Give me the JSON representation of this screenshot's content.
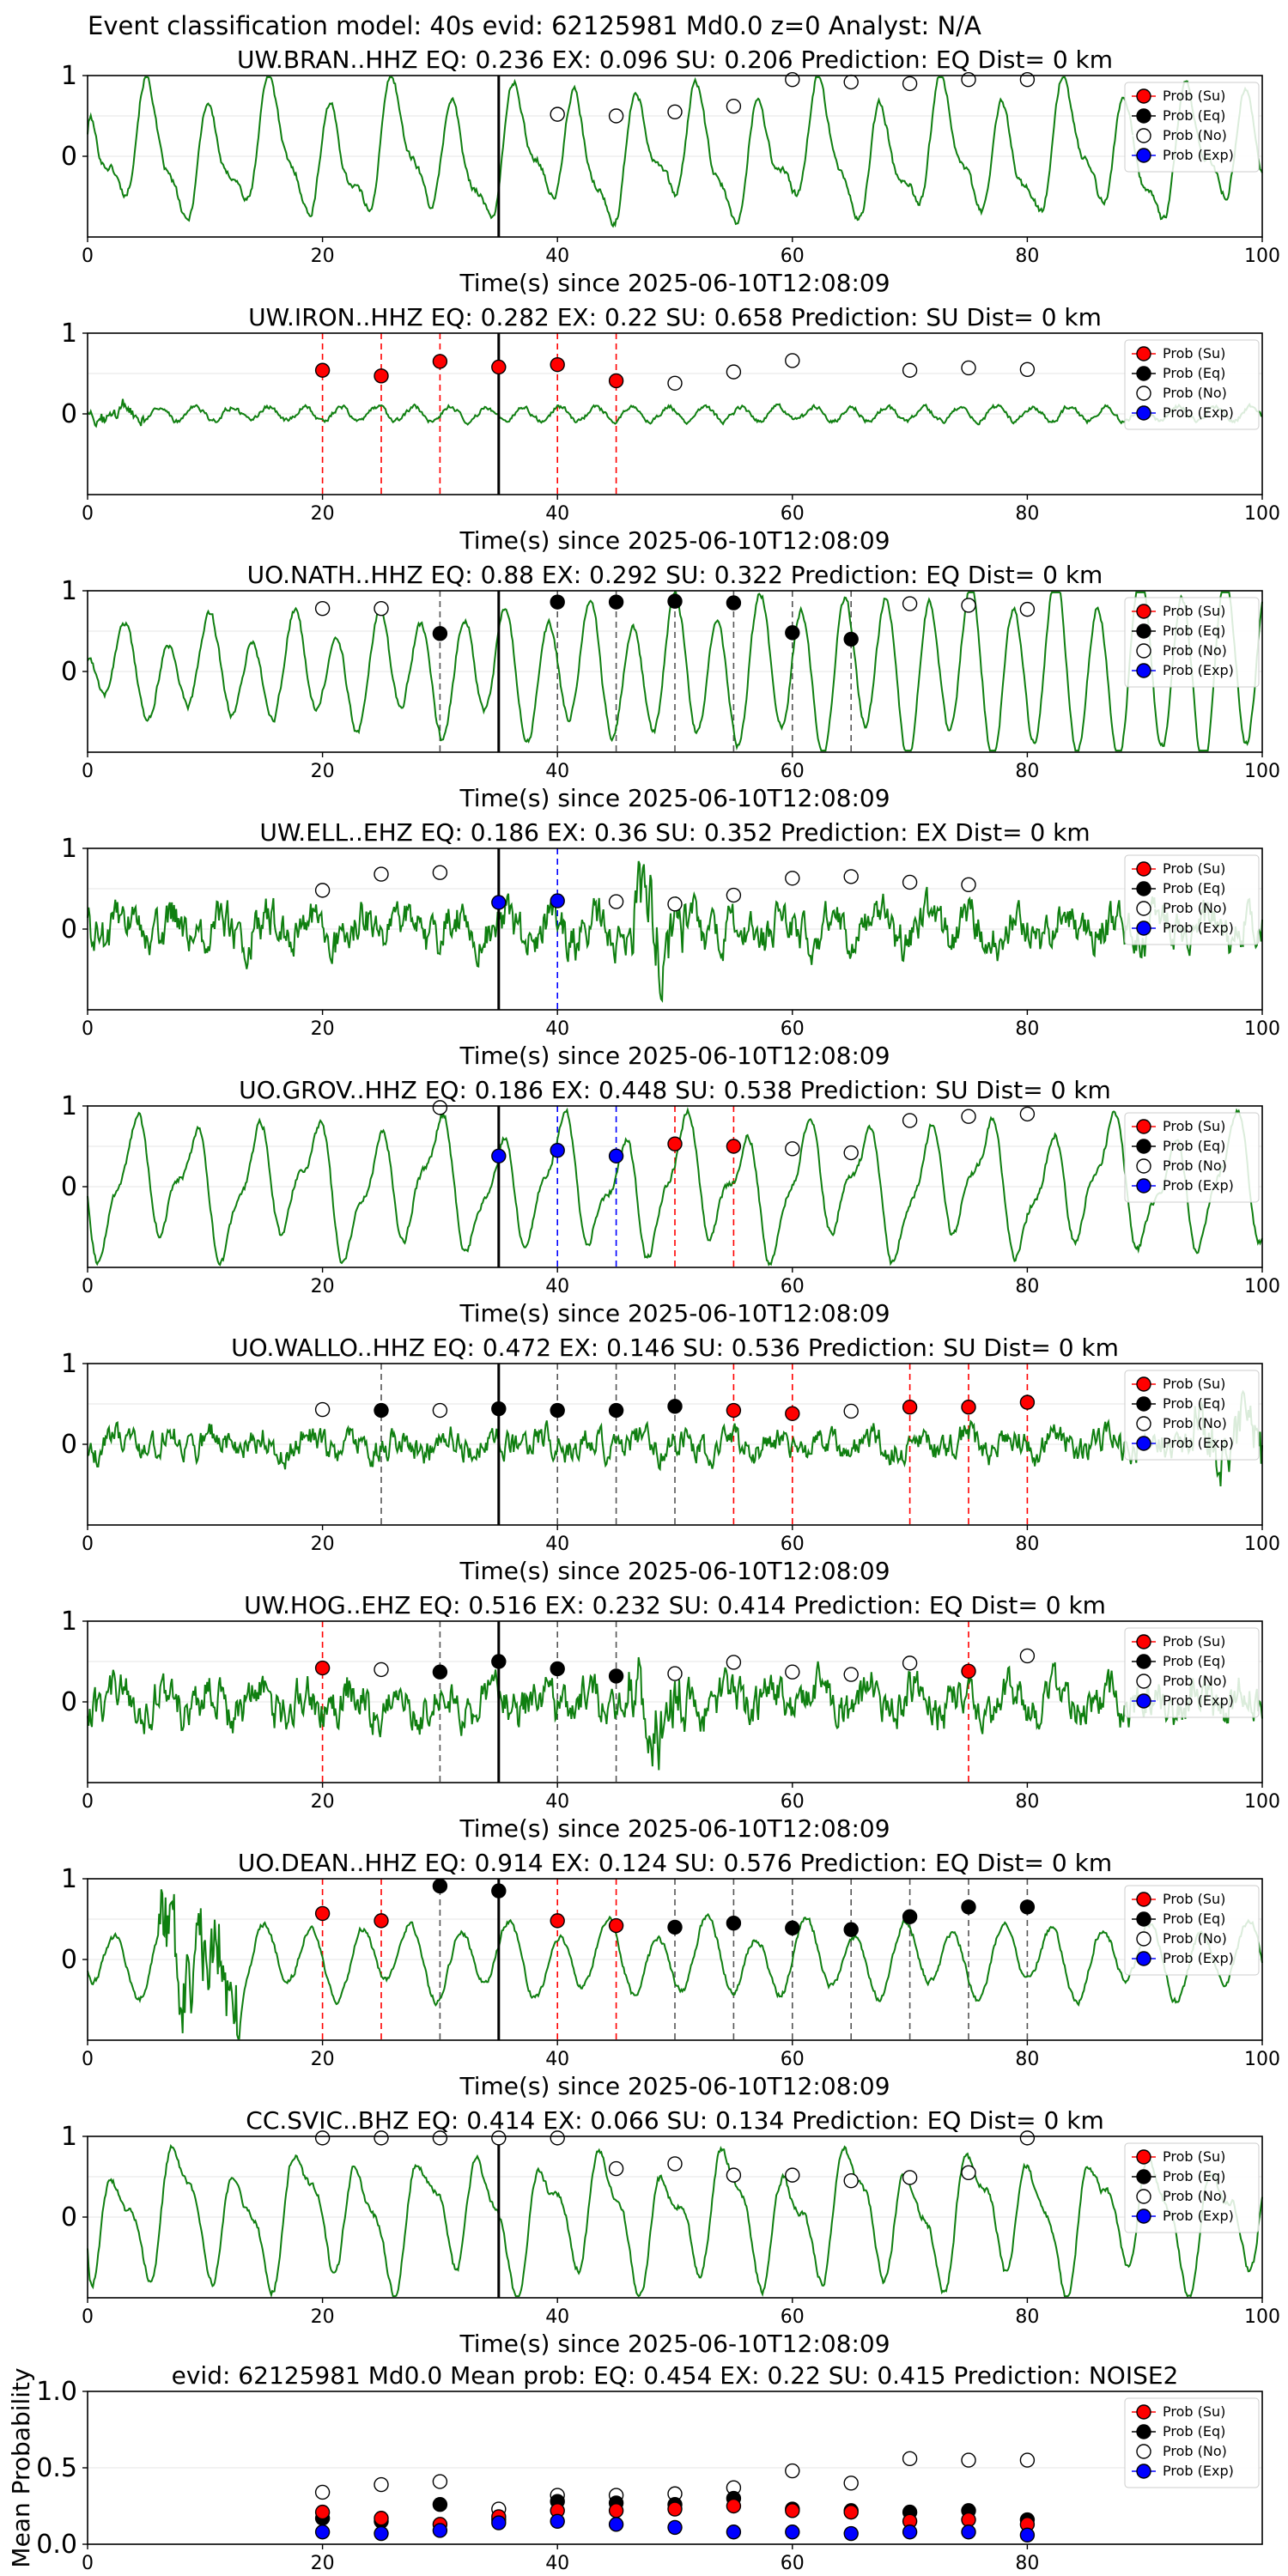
{
  "suptitle": "Event classification model: 40s evid: 62125981 Md0.0 z=0 Analyst: N/A",
  "colors": {
    "trace": "#0f7f10",
    "su": "#ff0000",
    "eq": "#000000",
    "no": "#ffffff",
    "exp": "#0000ff",
    "pick_line": "#000000"
  },
  "legend": [
    "Prob (Su)",
    "Prob (Eq)",
    "Prob (No)",
    "Prob (Exp)"
  ],
  "xlabel": "Time(s) since 2025-06-10T12:08:09",
  "chart_data": [
    {
      "type": "line",
      "title": "UW.BRAN..HHZ   EQ: 0.236  EX: 0.096  SU: 0.206   Prediction: EQ    Dist= 0 km",
      "xlim": [
        0,
        100
      ],
      "ylim": [
        -1,
        1
      ],
      "xticks": [
        0,
        20,
        40,
        60,
        80,
        100
      ],
      "yticks": [
        0,
        1
      ],
      "pick_time": 35,
      "waveform": "low-frequency",
      "windows": [
        {
          "t": 40,
          "p": 0.52,
          "class": "no"
        },
        {
          "t": 45,
          "p": 0.5,
          "class": "no"
        },
        {
          "t": 50,
          "p": 0.55,
          "class": "no"
        },
        {
          "t": 55,
          "p": 0.62,
          "class": "no"
        },
        {
          "t": 60,
          "p": 0.95,
          "class": "no"
        },
        {
          "t": 65,
          "p": 0.92,
          "class": "no"
        },
        {
          "t": 70,
          "p": 0.9,
          "class": "no"
        },
        {
          "t": 75,
          "p": 0.95,
          "class": "no"
        },
        {
          "t": 80,
          "p": 0.95,
          "class": "no"
        }
      ]
    },
    {
      "type": "line",
      "title": "UW.IRON..HHZ   EQ: 0.282  EX: 0.22  SU: 0.658   Prediction: SU    Dist= 0 km",
      "xlim": [
        0,
        100
      ],
      "ylim": [
        -1,
        1
      ],
      "xticks": [
        0,
        20,
        40,
        60,
        80,
        100
      ],
      "yticks": [
        0,
        1
      ],
      "pick_time": 35,
      "waveform": "quiet",
      "windows": [
        {
          "t": 20,
          "p": 0.54,
          "class": "su"
        },
        {
          "t": 25,
          "p": 0.47,
          "class": "su"
        },
        {
          "t": 30,
          "p": 0.65,
          "class": "su"
        },
        {
          "t": 35,
          "p": 0.58,
          "class": "su"
        },
        {
          "t": 40,
          "p": 0.61,
          "class": "su"
        },
        {
          "t": 45,
          "p": 0.41,
          "class": "su"
        },
        {
          "t": 50,
          "p": 0.38,
          "class": "no"
        },
        {
          "t": 55,
          "p": 0.52,
          "class": "no"
        },
        {
          "t": 60,
          "p": 0.66,
          "class": "no"
        },
        {
          "t": 70,
          "p": 0.54,
          "class": "no"
        },
        {
          "t": 75,
          "p": 0.57,
          "class": "no"
        },
        {
          "t": 80,
          "p": 0.55,
          "class": "no"
        }
      ]
    },
    {
      "type": "line",
      "title": "UO.NATH..HHZ   EQ: 0.88  EX: 0.292  SU: 0.322   Prediction: EQ    Dist= 0 km",
      "xlim": [
        0,
        100
      ],
      "ylim": [
        -1,
        1
      ],
      "xticks": [
        0,
        20,
        40,
        60,
        80,
        100
      ],
      "yticks": [
        0,
        1
      ],
      "pick_time": 35,
      "waveform": "low-frequency-growing",
      "windows": [
        {
          "t": 20,
          "p": 0.78,
          "class": "no"
        },
        {
          "t": 25,
          "p": 0.78,
          "class": "no"
        },
        {
          "t": 30,
          "p": 0.47,
          "class": "eq"
        },
        {
          "t": 40,
          "p": 0.86,
          "class": "eq"
        },
        {
          "t": 45,
          "p": 0.86,
          "class": "eq"
        },
        {
          "t": 50,
          "p": 0.87,
          "class": "eq"
        },
        {
          "t": 55,
          "p": 0.85,
          "class": "eq"
        },
        {
          "t": 60,
          "p": 0.48,
          "class": "eq"
        },
        {
          "t": 65,
          "p": 0.4,
          "class": "eq"
        },
        {
          "t": 70,
          "p": 0.84,
          "class": "no"
        },
        {
          "t": 75,
          "p": 0.82,
          "class": "no"
        },
        {
          "t": 80,
          "p": 0.77,
          "class": "no"
        }
      ]
    },
    {
      "type": "line",
      "title": "UW.ELL..EHZ   EQ: 0.186  EX: 0.36  SU: 0.352   Prediction: EX    Dist= 0 km",
      "xlim": [
        0,
        100
      ],
      "ylim": [
        -1,
        1
      ],
      "xticks": [
        0,
        20,
        40,
        60,
        80,
        100
      ],
      "yticks": [
        0,
        1
      ],
      "pick_time": 35,
      "waveform": "noisy",
      "windows": [
        {
          "t": 20,
          "p": 0.48,
          "class": "no"
        },
        {
          "t": 25,
          "p": 0.68,
          "class": "no"
        },
        {
          "t": 30,
          "p": 0.7,
          "class": "no"
        },
        {
          "t": 35,
          "p": 0.33,
          "class": "exp"
        },
        {
          "t": 40,
          "p": 0.35,
          "class": "exp"
        },
        {
          "t": 45,
          "p": 0.34,
          "class": "no"
        },
        {
          "t": 50,
          "p": 0.31,
          "class": "no"
        },
        {
          "t": 55,
          "p": 0.42,
          "class": "no"
        },
        {
          "t": 60,
          "p": 0.63,
          "class": "no"
        },
        {
          "t": 65,
          "p": 0.65,
          "class": "no"
        },
        {
          "t": 70,
          "p": 0.58,
          "class": "no"
        },
        {
          "t": 75,
          "p": 0.55,
          "class": "no"
        }
      ]
    },
    {
      "type": "line",
      "title": "UO.GROV..HHZ   EQ: 0.186  EX: 0.448  SU: 0.538   Prediction: SU    Dist= 0 km",
      "xlim": [
        0,
        100
      ],
      "ylim": [
        -1,
        1
      ],
      "xticks": [
        0,
        20,
        40,
        60,
        80,
        100
      ],
      "yticks": [
        0,
        1
      ],
      "pick_time": 35,
      "waveform": "low-frequency",
      "windows": [
        {
          "t": 30,
          "p": 0.98,
          "class": "no"
        },
        {
          "t": 35,
          "p": 0.38,
          "class": "exp"
        },
        {
          "t": 40,
          "p": 0.45,
          "class": "exp"
        },
        {
          "t": 45,
          "p": 0.38,
          "class": "exp"
        },
        {
          "t": 50,
          "p": 0.53,
          "class": "su"
        },
        {
          "t": 55,
          "p": 0.5,
          "class": "su"
        },
        {
          "t": 60,
          "p": 0.47,
          "class": "no"
        },
        {
          "t": 65,
          "p": 0.42,
          "class": "no"
        },
        {
          "t": 70,
          "p": 0.82,
          "class": "no"
        },
        {
          "t": 75,
          "p": 0.87,
          "class": "no"
        },
        {
          "t": 80,
          "p": 0.9,
          "class": "no"
        }
      ]
    },
    {
      "type": "line",
      "title": "UO.WALLO..HHZ   EQ: 0.472  EX: 0.146  SU: 0.536   Prediction: SU    Dist= 0 km",
      "xlim": [
        0,
        100
      ],
      "ylim": [
        -1,
        1
      ],
      "xticks": [
        0,
        20,
        40,
        60,
        80,
        100
      ],
      "yticks": [
        0,
        1
      ],
      "pick_time": 35,
      "waveform": "noisy-moderate",
      "windows": [
        {
          "t": 20,
          "p": 0.43,
          "class": "no"
        },
        {
          "t": 25,
          "p": 0.42,
          "class": "eq"
        },
        {
          "t": 30,
          "p": 0.42,
          "class": "no"
        },
        {
          "t": 35,
          "p": 0.44,
          "class": "eq"
        },
        {
          "t": 40,
          "p": 0.42,
          "class": "eq"
        },
        {
          "t": 45,
          "p": 0.42,
          "class": "eq"
        },
        {
          "t": 50,
          "p": 0.47,
          "class": "eq"
        },
        {
          "t": 55,
          "p": 0.42,
          "class": "su"
        },
        {
          "t": 60,
          "p": 0.38,
          "class": "su"
        },
        {
          "t": 65,
          "p": 0.41,
          "class": "no"
        },
        {
          "t": 70,
          "p": 0.46,
          "class": "su"
        },
        {
          "t": 75,
          "p": 0.46,
          "class": "su"
        },
        {
          "t": 80,
          "p": 0.52,
          "class": "su"
        }
      ]
    },
    {
      "type": "line",
      "title": "UW.HOG..EHZ   EQ: 0.516  EX: 0.232  SU: 0.414   Prediction: EQ    Dist= 0 km",
      "xlim": [
        0,
        100
      ],
      "ylim": [
        -1,
        1
      ],
      "xticks": [
        0,
        20,
        40,
        60,
        80,
        100
      ],
      "yticks": [
        0,
        1
      ],
      "pick_time": 35,
      "waveform": "noisy",
      "windows": [
        {
          "t": 20,
          "p": 0.42,
          "class": "su"
        },
        {
          "t": 25,
          "p": 0.4,
          "class": "no"
        },
        {
          "t": 30,
          "p": 0.37,
          "class": "eq"
        },
        {
          "t": 35,
          "p": 0.5,
          "class": "eq"
        },
        {
          "t": 40,
          "p": 0.41,
          "class": "eq"
        },
        {
          "t": 45,
          "p": 0.32,
          "class": "eq"
        },
        {
          "t": 50,
          "p": 0.35,
          "class": "no"
        },
        {
          "t": 55,
          "p": 0.49,
          "class": "no"
        },
        {
          "t": 60,
          "p": 0.37,
          "class": "no"
        },
        {
          "t": 65,
          "p": 0.34,
          "class": "no"
        },
        {
          "t": 70,
          "p": 0.48,
          "class": "no"
        },
        {
          "t": 75,
          "p": 0.38,
          "class": "su"
        },
        {
          "t": 80,
          "p": 0.57,
          "class": "no"
        }
      ]
    },
    {
      "type": "line",
      "title": "UO.DEAN..HHZ   EQ: 0.914  EX: 0.124  SU: 0.576   Prediction: EQ    Dist= 0 km",
      "xlim": [
        0,
        100
      ],
      "ylim": [
        -1,
        1
      ],
      "xticks": [
        0,
        20,
        40,
        60,
        80,
        100
      ],
      "yticks": [
        0,
        1
      ],
      "pick_time": 35,
      "waveform": "burst-then-low",
      "windows": [
        {
          "t": 20,
          "p": 0.57,
          "class": "su"
        },
        {
          "t": 25,
          "p": 0.48,
          "class": "su"
        },
        {
          "t": 30,
          "p": 0.91,
          "class": "eq"
        },
        {
          "t": 35,
          "p": 0.85,
          "class": "eq"
        },
        {
          "t": 40,
          "p": 0.48,
          "class": "su"
        },
        {
          "t": 45,
          "p": 0.42,
          "class": "su"
        },
        {
          "t": 50,
          "p": 0.4,
          "class": "eq"
        },
        {
          "t": 55,
          "p": 0.45,
          "class": "eq"
        },
        {
          "t": 60,
          "p": 0.39,
          "class": "eq"
        },
        {
          "t": 65,
          "p": 0.37,
          "class": "eq"
        },
        {
          "t": 70,
          "p": 0.53,
          "class": "eq"
        },
        {
          "t": 75,
          "p": 0.65,
          "class": "eq"
        },
        {
          "t": 80,
          "p": 0.65,
          "class": "eq"
        }
      ]
    },
    {
      "type": "line",
      "title": "CC.SVIC..BHZ   EQ: 0.414  EX: 0.066  SU: 0.134   Prediction: EQ    Dist= 0 km",
      "xlim": [
        0,
        100
      ],
      "ylim": [
        -1,
        1
      ],
      "xticks": [
        0,
        20,
        40,
        60,
        80,
        100
      ],
      "yticks": [
        0,
        1
      ],
      "pick_time": 35,
      "waveform": "low-frequency",
      "windows": [
        {
          "t": 20,
          "p": 0.98,
          "class": "no"
        },
        {
          "t": 25,
          "p": 0.98,
          "class": "no"
        },
        {
          "t": 30,
          "p": 0.98,
          "class": "no"
        },
        {
          "t": 35,
          "p": 0.98,
          "class": "no"
        },
        {
          "t": 40,
          "p": 0.98,
          "class": "no"
        },
        {
          "t": 45,
          "p": 0.6,
          "class": "no"
        },
        {
          "t": 50,
          "p": 0.66,
          "class": "no"
        },
        {
          "t": 55,
          "p": 0.52,
          "class": "no"
        },
        {
          "t": 60,
          "p": 0.52,
          "class": "no"
        },
        {
          "t": 65,
          "p": 0.45,
          "class": "no"
        },
        {
          "t": 70,
          "p": 0.49,
          "class": "no"
        },
        {
          "t": 75,
          "p": 0.55,
          "class": "no"
        },
        {
          "t": 80,
          "p": 0.98,
          "class": "no"
        }
      ]
    },
    {
      "type": "scatter",
      "title": "evid: 62125981  Md0.0   Mean prob:   EQ: 0.454  EX: 0.22  SU: 0.415   Prediction: NOISE2",
      "ylabel": "Mean Probability",
      "xlim": [
        0,
        100
      ],
      "ylim": [
        0,
        1
      ],
      "xticks": [
        0,
        20,
        40,
        60,
        80
      ],
      "yticks": [
        "0.0",
        "0.5",
        "1.0"
      ],
      "x": [
        20,
        25,
        30,
        35,
        40,
        45,
        50,
        55,
        60,
        65,
        70,
        75,
        80
      ],
      "series": [
        {
          "name": "Prob (No)",
          "class": "no",
          "values": [
            0.34,
            0.39,
            0.41,
            0.23,
            0.32,
            0.32,
            0.33,
            0.37,
            0.48,
            0.4,
            0.56,
            0.55,
            0.55
          ]
        },
        {
          "name": "Prob (Eq)",
          "class": "eq",
          "values": [
            0.17,
            0.15,
            0.26,
            0.16,
            0.28,
            0.27,
            0.26,
            0.3,
            0.23,
            0.22,
            0.21,
            0.22,
            0.16
          ]
        },
        {
          "name": "Prob (Su)",
          "class": "su",
          "values": [
            0.21,
            0.17,
            0.13,
            0.18,
            0.22,
            0.22,
            0.23,
            0.25,
            0.22,
            0.21,
            0.15,
            0.16,
            0.13
          ]
        },
        {
          "name": "Prob (Exp)",
          "class": "exp",
          "values": [
            0.08,
            0.07,
            0.09,
            0.14,
            0.15,
            0.13,
            0.11,
            0.08,
            0.08,
            0.07,
            0.08,
            0.08,
            0.06
          ]
        }
      ]
    }
  ]
}
